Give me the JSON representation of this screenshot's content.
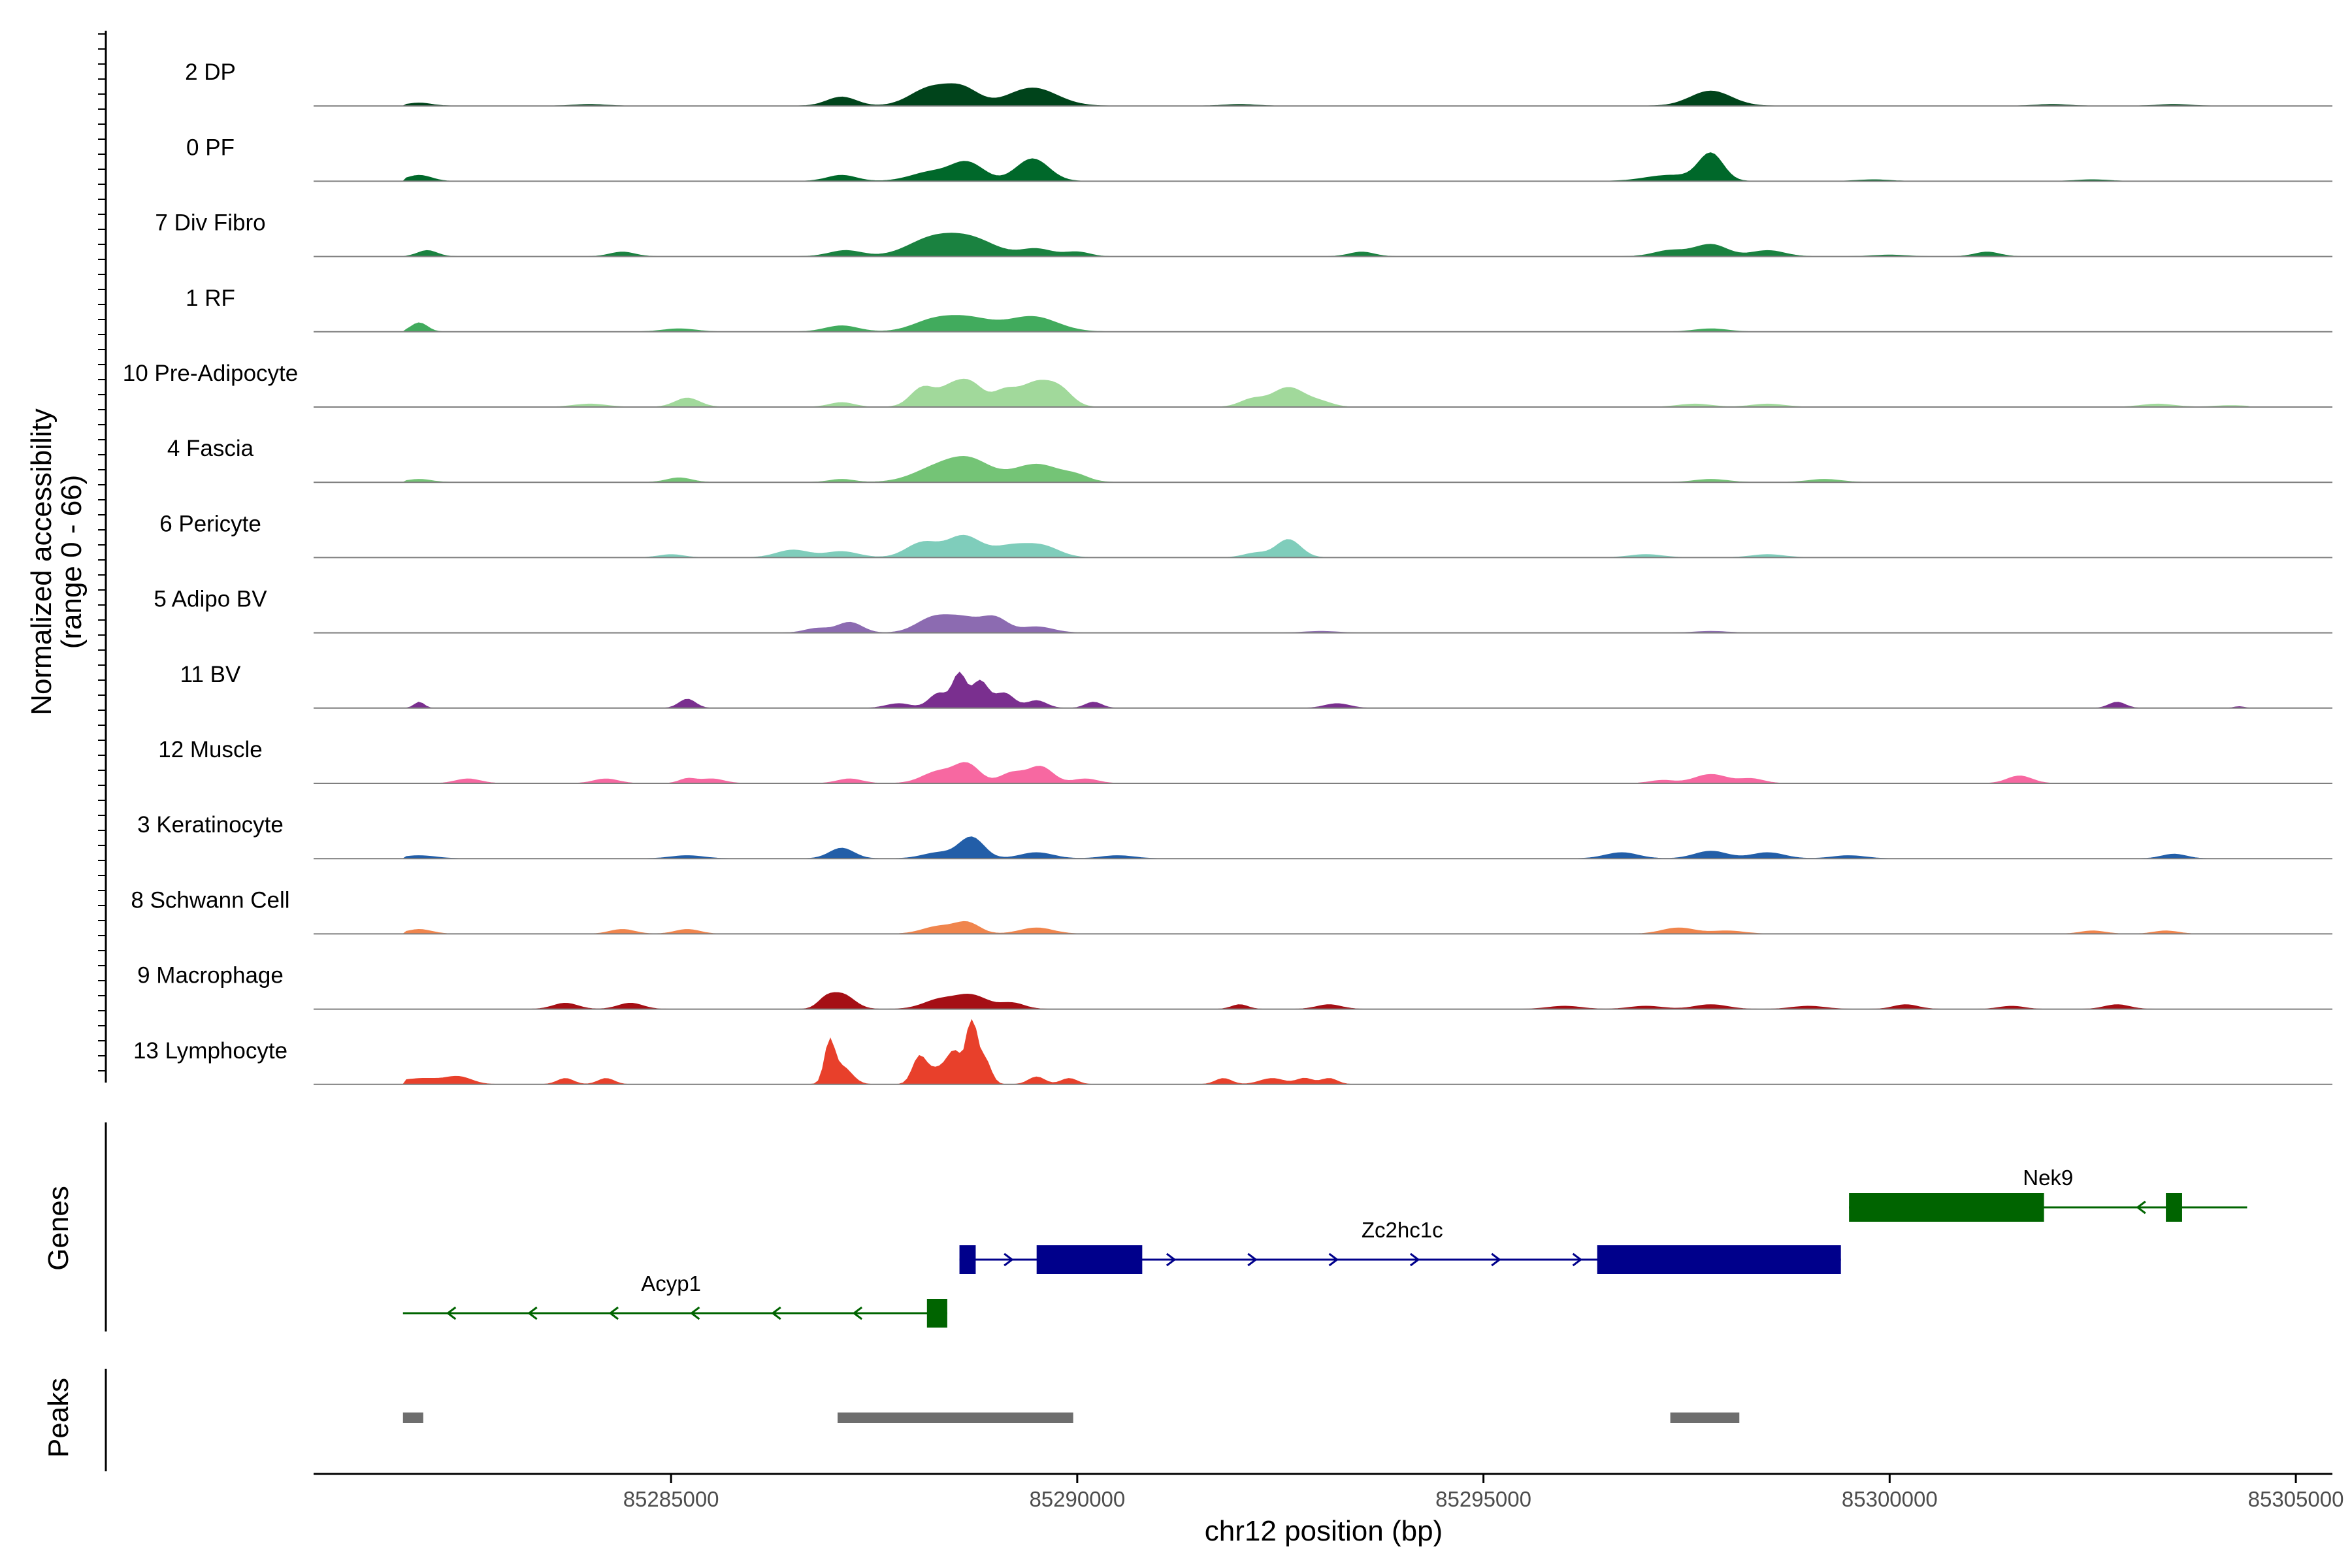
{
  "chart_data": {
    "type": "area",
    "title": "",
    "y_axis_label": "Normalized accessibility",
    "y_axis_range_label": "(range 0 - 66)",
    "y_range": [
      0,
      66
    ],
    "x_axis_label": "chr12 position (bp)",
    "x_range": [
      85280600,
      85305450
    ],
    "x_ticks": [
      85285000,
      85290000,
      85295000,
      85300000,
      85305000
    ],
    "x_tick_labels": [
      "85285000",
      "85290000",
      "85295000",
      "85300000",
      "85305000"
    ],
    "tracks": [
      {
        "name": "2 DP",
        "color": "#00441b",
        "peaks": [
          [
            85281900,
            2,
            150
          ],
          [
            85287100,
            6,
            180
          ],
          [
            85288200,
            12,
            250
          ],
          [
            85288600,
            10,
            200
          ],
          [
            85289450,
            12,
            300
          ],
          [
            85297800,
            10,
            250
          ],
          [
            85284000,
            1,
            200
          ],
          [
            85292000,
            1,
            200
          ],
          [
            85302000,
            1,
            200
          ],
          [
            85303500,
            1,
            200
          ]
        ]
      },
      {
        "name": "0 PF",
        "color": "#00682a",
        "peaks": [
          [
            85281900,
            4,
            150
          ],
          [
            85287100,
            4,
            180
          ],
          [
            85288200,
            6,
            250
          ],
          [
            85288650,
            12,
            200
          ],
          [
            85289450,
            15,
            200
          ],
          [
            85297800,
            18,
            150
          ],
          [
            85297300,
            4,
            300
          ],
          [
            85299800,
            1,
            200
          ],
          [
            85302500,
            1,
            200
          ]
        ]
      },
      {
        "name": "7 Div Fibro",
        "color": "#1a8240",
        "peaks": [
          [
            85282000,
            4,
            120
          ],
          [
            85284400,
            3,
            150
          ],
          [
            85287150,
            4,
            200
          ],
          [
            85288200,
            11,
            300
          ],
          [
            85288700,
            11,
            300
          ],
          [
            85289500,
            5,
            200
          ],
          [
            85290000,
            3,
            150
          ],
          [
            85293500,
            3,
            150
          ],
          [
            85297300,
            4,
            200
          ],
          [
            85297800,
            8,
            200
          ],
          [
            85298500,
            4,
            200
          ],
          [
            85301200,
            3,
            150
          ],
          [
            85300000,
            1,
            200
          ]
        ]
      },
      {
        "name": "1 RF",
        "color": "#41ab5d",
        "peaks": [
          [
            85281900,
            6,
            100
          ],
          [
            85285100,
            2,
            200
          ],
          [
            85287100,
            4,
            200
          ],
          [
            85288200,
            6,
            250
          ],
          [
            85288650,
            9,
            300
          ],
          [
            85289450,
            10,
            300
          ],
          [
            85297800,
            2,
            200
          ]
        ]
      },
      {
        "name": "10 Pre-Adipocyte",
        "color": "#a1d99b",
        "peaks": [
          [
            85285200,
            6,
            150
          ],
          [
            85287100,
            3,
            150
          ],
          [
            85288100,
            13,
            150
          ],
          [
            85288450,
            12,
            150
          ],
          [
            85288700,
            14,
            150
          ],
          [
            85289100,
            10,
            150
          ],
          [
            85289500,
            16,
            200
          ],
          [
            85289800,
            9,
            150
          ],
          [
            85292600,
            13,
            200
          ],
          [
            85292150,
            5,
            150
          ],
          [
            85293000,
            3,
            150
          ],
          [
            85284000,
            2,
            200
          ],
          [
            85297600,
            2,
            200
          ],
          [
            85298500,
            2,
            200
          ],
          [
            85303300,
            2,
            200
          ],
          [
            85304200,
            1,
            200
          ]
        ]
      },
      {
        "name": "4 Fascia",
        "color": "#74c476",
        "peaks": [
          [
            85281900,
            2,
            150
          ],
          [
            85285100,
            3,
            150
          ],
          [
            85287100,
            2,
            150
          ],
          [
            85288300,
            10,
            300
          ],
          [
            85288700,
            12,
            250
          ],
          [
            85289500,
            12,
            300
          ],
          [
            85290000,
            3,
            150
          ],
          [
            85297800,
            2,
            200
          ],
          [
            85299200,
            2,
            200
          ]
        ]
      },
      {
        "name": "6 Pericyte",
        "color": "#7fcdbb",
        "peaks": [
          [
            85285000,
            2,
            150
          ],
          [
            85286500,
            5,
            200
          ],
          [
            85287100,
            4,
            200
          ],
          [
            85288100,
            10,
            200
          ],
          [
            85288600,
            14,
            200
          ],
          [
            85289200,
            8,
            250
          ],
          [
            85289600,
            6,
            200
          ],
          [
            85292600,
            12,
            150
          ],
          [
            85292200,
            3,
            150
          ],
          [
            85297000,
            2,
            200
          ],
          [
            85298500,
            2,
            200
          ]
        ]
      },
      {
        "name": "5 Adipo BV",
        "color": "#8c6bb1",
        "peaks": [
          [
            85287200,
            7,
            150
          ],
          [
            85288200,
            8,
            200
          ],
          [
            85288600,
            10,
            250
          ],
          [
            85289000,
            8,
            150
          ],
          [
            85289500,
            4,
            200
          ],
          [
            85286800,
            3,
            150
          ],
          [
            85293000,
            1,
            200
          ],
          [
            85297800,
            1,
            200
          ]
        ]
      },
      {
        "name": "11 BV",
        "color": "#7a2f8f",
        "peaks": [
          [
            85281900,
            4,
            60
          ],
          [
            85285200,
            6,
            100
          ],
          [
            85287800,
            3,
            150
          ],
          [
            85288300,
            10,
            120
          ],
          [
            85288550,
            22,
            80
          ],
          [
            85288800,
            18,
            100
          ],
          [
            85289100,
            10,
            120
          ],
          [
            85289500,
            5,
            120
          ],
          [
            85290200,
            4,
            100
          ],
          [
            85293200,
            3,
            150
          ],
          [
            85302800,
            4,
            100
          ],
          [
            85304300,
            1,
            60
          ]
        ]
      },
      {
        "name": "12 Muscle",
        "color": "#f768a1",
        "peaks": [
          [
            85282500,
            3,
            150
          ],
          [
            85284200,
            3,
            150
          ],
          [
            85285500,
            3,
            150
          ],
          [
            85287200,
            3,
            150
          ],
          [
            85288300,
            8,
            200
          ],
          [
            85288650,
            12,
            150
          ],
          [
            85289200,
            7,
            150
          ],
          [
            85289550,
            11,
            150
          ],
          [
            85290100,
            3,
            150
          ],
          [
            85297200,
            2,
            150
          ],
          [
            85297800,
            6,
            200
          ],
          [
            85298300,
            3,
            150
          ],
          [
            85301600,
            5,
            150
          ],
          [
            85285200,
            3,
            100
          ]
        ]
      },
      {
        "name": "3 Keratinocyte",
        "color": "#225ea8",
        "peaks": [
          [
            85287100,
            7,
            150
          ],
          [
            85288700,
            14,
            150
          ],
          [
            85288300,
            4,
            200
          ],
          [
            85289500,
            4,
            200
          ],
          [
            85290500,
            2,
            200
          ],
          [
            85296700,
            4,
            200
          ],
          [
            85297800,
            5,
            200
          ],
          [
            85298500,
            4,
            200
          ],
          [
            85299500,
            2,
            200
          ],
          [
            85303500,
            3,
            150
          ],
          [
            85281900,
            2,
            200
          ],
          [
            85285200,
            2,
            200
          ]
        ]
      },
      {
        "name": "8 Schwann Cell",
        "color": "#f0854d",
        "peaks": [
          [
            85281900,
            3,
            150
          ],
          [
            85284400,
            3,
            150
          ],
          [
            85285200,
            3,
            150
          ],
          [
            85288300,
            5,
            200
          ],
          [
            85288650,
            7,
            150
          ],
          [
            85289500,
            4,
            200
          ],
          [
            85297400,
            4,
            200
          ],
          [
            85298000,
            2,
            200
          ],
          [
            85302500,
            2,
            150
          ],
          [
            85303400,
            2,
            150
          ]
        ]
      },
      {
        "name": "9 Macrophage",
        "color": "#a50f15",
        "peaks": [
          [
            85283700,
            4,
            150
          ],
          [
            85284500,
            4,
            150
          ],
          [
            85287100,
            10,
            150
          ],
          [
            85286900,
            5,
            100
          ],
          [
            85288300,
            6,
            200
          ],
          [
            85288700,
            9,
            200
          ],
          [
            85289200,
            4,
            150
          ],
          [
            85292000,
            3,
            100
          ],
          [
            85293100,
            3,
            150
          ],
          [
            85296000,
            2,
            200
          ],
          [
            85297000,
            2,
            200
          ],
          [
            85297800,
            3,
            200
          ],
          [
            85299000,
            2,
            200
          ],
          [
            85300200,
            3,
            150
          ],
          [
            85301500,
            2,
            150
          ],
          [
            85302800,
            3,
            150
          ]
        ]
      },
      {
        "name": "13 Lymphocyte",
        "color": "#e8402b",
        "peaks": [
          [
            85281950,
            4,
            300
          ],
          [
            85282400,
            4,
            150
          ],
          [
            85283700,
            4,
            100
          ],
          [
            85284200,
            4,
            100
          ],
          [
            85286950,
            25,
            60
          ],
          [
            85287100,
            12,
            120
          ],
          [
            85288050,
            15,
            80
          ],
          [
            85288250,
            10,
            150
          ],
          [
            85288500,
            20,
            100
          ],
          [
            85288700,
            40,
            60
          ],
          [
            85288850,
            18,
            80
          ],
          [
            85289500,
            5,
            100
          ],
          [
            85289900,
            4,
            100
          ],
          [
            85291800,
            4,
            100
          ],
          [
            85292400,
            4,
            150
          ],
          [
            85292800,
            4,
            100
          ],
          [
            85293100,
            4,
            100
          ]
        ]
      }
    ],
    "genes_label": "Genes",
    "genes": [
      {
        "name": "Nek9",
        "strand": "-",
        "color": "#006400",
        "start": 85299500,
        "end": 85304400,
        "exons": [
          [
            85299500,
            85301900
          ],
          [
            85303400,
            85303600
          ]
        ]
      },
      {
        "name": "Zc2hc1c",
        "strand": "+",
        "color": "#00008b",
        "start": 85288550,
        "end": 85299400,
        "exons": [
          [
            85288550,
            85288750
          ],
          [
            85289500,
            85290800
          ],
          [
            85296400,
            85299400
          ]
        ]
      },
      {
        "name": "Acyp1",
        "strand": "-",
        "color": "#006400",
        "start": 85281700,
        "end": 85288400,
        "exons": [
          [
            85288150,
            85288400
          ]
        ]
      }
    ],
    "peaks_label": "Peaks",
    "peak_regions": [
      [
        85281700,
        85281950
      ],
      [
        85287050,
        85289950
      ],
      [
        85297300,
        85298150
      ]
    ]
  }
}
